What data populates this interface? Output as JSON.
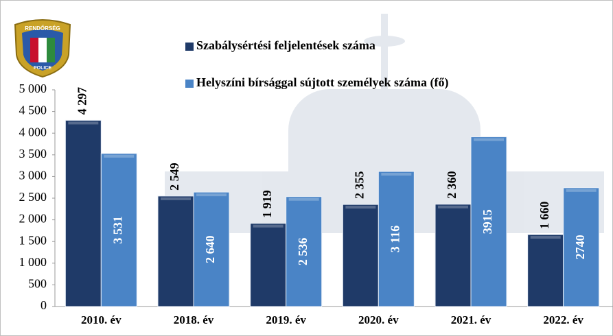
{
  "chart_data": {
    "type": "bar",
    "annotations": [
      "RENDŐRSÉG",
      "POLICE"
    ],
    "categories": [
      "2010. év",
      "2018. év",
      "2019. év",
      "2020. év",
      "2021. év",
      "2022. év"
    ],
    "series": [
      {
        "name": "Szabálysértési feljelentések száma",
        "color": "#1f3a68",
        "values": [
          4297,
          2549,
          1919,
          2355,
          2360,
          1660
        ],
        "value_labels": [
          "4 297",
          "2 549",
          "1 919",
          "2 355",
          "2 360",
          "1 660"
        ]
      },
      {
        "name": "Helyszíni bírsággal sújtott személyek száma (fő)",
        "color": "#4a84c6",
        "values": [
          3531,
          2640,
          2536,
          3116,
          3915,
          2740
        ],
        "value_labels": [
          "3 531",
          "2 640",
          "2 536",
          "3 116",
          "3915",
          "2740"
        ]
      }
    ],
    "ylim": [
      0,
      5000
    ],
    "yticks": [
      0,
      500,
      {
        "value": 1000,
        "label": "1 000"
      },
      {
        "value": 1500,
        "label": "1 500"
      },
      {
        "value": 2000,
        "label": "2 000"
      },
      {
        "value": 2500,
        "label": "2 500"
      },
      {
        "value": 3000,
        "label": "3 000"
      },
      {
        "value": 3500,
        "label": "3 500"
      },
      {
        "value": 4000,
        "label": "4 000"
      },
      {
        "value": 4500,
        "label": "4 500"
      },
      {
        "value": 5000,
        "label": "5 000"
      }
    ]
  }
}
